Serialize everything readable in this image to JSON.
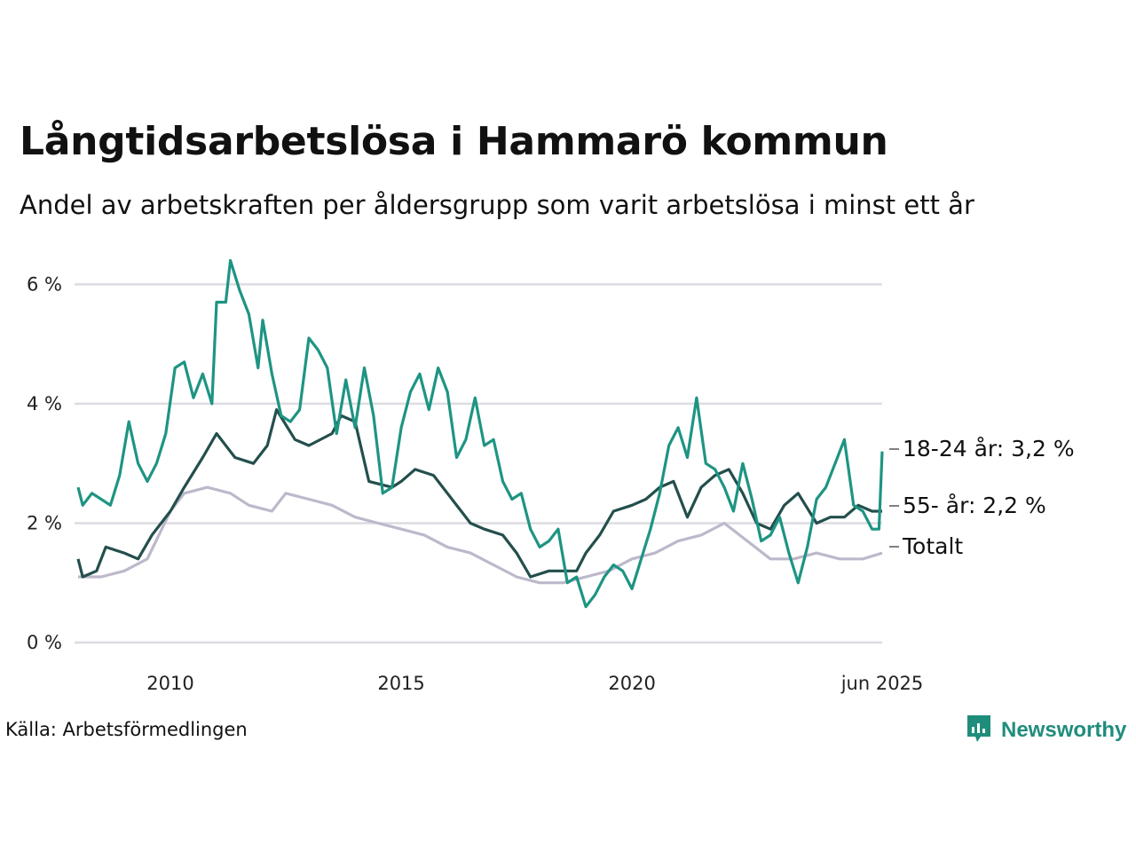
{
  "title": "Långtidsarbetslösa i Hammarö kommun",
  "subtitle": "Andel av arbetskraften per åldersgrupp som varit arbetslösa i minst ett år",
  "source": "Källa: Arbetsförmedlingen",
  "brand": {
    "name": "Newsworthy",
    "icon": "newsworthy-logo-icon",
    "color": "#1f8d7c"
  },
  "chart_data": {
    "type": "line",
    "x_start": "2008-01",
    "x_end": "2025-06",
    "xlim": [
      2008.0,
      2025.42
    ],
    "ylim": [
      0,
      6.6
    ],
    "x_ticks": [
      {
        "x": 2010,
        "label": "2010"
      },
      {
        "x": 2015,
        "label": "2015"
      },
      {
        "x": 2020,
        "label": "2020"
      },
      {
        "x": 2025.42,
        "label": "jun 2025"
      }
    ],
    "y_ticks": [
      {
        "y": 0,
        "label": "0 %"
      },
      {
        "y": 2,
        "label": "2 %"
      },
      {
        "y": 4,
        "label": "4 %"
      },
      {
        "y": 6,
        "label": "6 %"
      }
    ],
    "grid": "horizontal",
    "series": [
      {
        "name": "Totalt",
        "label": "Totalt",
        "color": "#bdb8cb",
        "points": [
          [
            2008.0,
            1.1
          ],
          [
            2008.5,
            1.1
          ],
          [
            2009.0,
            1.2
          ],
          [
            2009.5,
            1.4
          ],
          [
            2010.0,
            2.2
          ],
          [
            2010.3,
            2.5
          ],
          [
            2010.8,
            2.6
          ],
          [
            2011.3,
            2.5
          ],
          [
            2011.7,
            2.3
          ],
          [
            2012.2,
            2.2
          ],
          [
            2012.5,
            2.5
          ],
          [
            2013.0,
            2.4
          ],
          [
            2013.5,
            2.3
          ],
          [
            2014.0,
            2.1
          ],
          [
            2014.5,
            2.0
          ],
          [
            2015.0,
            1.9
          ],
          [
            2015.5,
            1.8
          ],
          [
            2016.0,
            1.6
          ],
          [
            2016.5,
            1.5
          ],
          [
            2017.0,
            1.3
          ],
          [
            2017.5,
            1.1
          ],
          [
            2018.0,
            1.0
          ],
          [
            2018.5,
            1.0
          ],
          [
            2019.0,
            1.1
          ],
          [
            2019.5,
            1.2
          ],
          [
            2020.0,
            1.4
          ],
          [
            2020.5,
            1.5
          ],
          [
            2021.0,
            1.7
          ],
          [
            2021.5,
            1.8
          ],
          [
            2022.0,
            2.0
          ],
          [
            2022.5,
            1.7
          ],
          [
            2023.0,
            1.4
          ],
          [
            2023.5,
            1.4
          ],
          [
            2024.0,
            1.5
          ],
          [
            2024.5,
            1.4
          ],
          [
            2025.0,
            1.4
          ],
          [
            2025.42,
            1.5
          ]
        ]
      },
      {
        "name": "55- år",
        "label": "55- år: 2,2 %",
        "color": "#234f4c",
        "points": [
          [
            2008.0,
            1.4
          ],
          [
            2008.1,
            1.1
          ],
          [
            2008.4,
            1.2
          ],
          [
            2008.6,
            1.6
          ],
          [
            2009.0,
            1.5
          ],
          [
            2009.3,
            1.4
          ],
          [
            2009.6,
            1.8
          ],
          [
            2010.0,
            2.2
          ],
          [
            2010.3,
            2.6
          ],
          [
            2010.7,
            3.1
          ],
          [
            2011.0,
            3.5
          ],
          [
            2011.4,
            3.1
          ],
          [
            2011.8,
            3.0
          ],
          [
            2012.1,
            3.3
          ],
          [
            2012.3,
            3.9
          ],
          [
            2012.7,
            3.4
          ],
          [
            2013.0,
            3.3
          ],
          [
            2013.5,
            3.5
          ],
          [
            2013.7,
            3.8
          ],
          [
            2014.0,
            3.7
          ],
          [
            2014.3,
            2.7
          ],
          [
            2014.8,
            2.6
          ],
          [
            2015.0,
            2.7
          ],
          [
            2015.3,
            2.9
          ],
          [
            2015.7,
            2.8
          ],
          [
            2016.0,
            2.5
          ],
          [
            2016.3,
            2.2
          ],
          [
            2016.5,
            2.0
          ],
          [
            2016.8,
            1.9
          ],
          [
            2017.2,
            1.8
          ],
          [
            2017.5,
            1.5
          ],
          [
            2017.8,
            1.1
          ],
          [
            2018.2,
            1.2
          ],
          [
            2018.5,
            1.2
          ],
          [
            2018.8,
            1.2
          ],
          [
            2019.0,
            1.5
          ],
          [
            2019.3,
            1.8
          ],
          [
            2019.6,
            2.2
          ],
          [
            2020.0,
            2.3
          ],
          [
            2020.3,
            2.4
          ],
          [
            2020.6,
            2.6
          ],
          [
            2020.9,
            2.7
          ],
          [
            2021.2,
            2.1
          ],
          [
            2021.5,
            2.6
          ],
          [
            2021.8,
            2.8
          ],
          [
            2022.1,
            2.9
          ],
          [
            2022.4,
            2.5
          ],
          [
            2022.7,
            2.0
          ],
          [
            2023.0,
            1.9
          ],
          [
            2023.3,
            2.3
          ],
          [
            2023.6,
            2.5
          ],
          [
            2024.0,
            2.0
          ],
          [
            2024.3,
            2.1
          ],
          [
            2024.6,
            2.1
          ],
          [
            2024.9,
            2.3
          ],
          [
            2025.2,
            2.2
          ],
          [
            2025.42,
            2.2
          ]
        ]
      },
      {
        "name": "18-24 år",
        "label": "18-24 år: 3,2 %",
        "color": "#1e9483",
        "points": [
          [
            2008.0,
            2.6
          ],
          [
            2008.1,
            2.3
          ],
          [
            2008.3,
            2.5
          ],
          [
            2008.5,
            2.4
          ],
          [
            2008.7,
            2.3
          ],
          [
            2008.9,
            2.8
          ],
          [
            2009.1,
            3.7
          ],
          [
            2009.3,
            3.0
          ],
          [
            2009.5,
            2.7
          ],
          [
            2009.7,
            3.0
          ],
          [
            2009.9,
            3.5
          ],
          [
            2010.1,
            4.6
          ],
          [
            2010.3,
            4.7
          ],
          [
            2010.5,
            4.1
          ],
          [
            2010.7,
            4.5
          ],
          [
            2010.9,
            4.0
          ],
          [
            2011.0,
            5.7
          ],
          [
            2011.2,
            5.7
          ],
          [
            2011.3,
            6.4
          ],
          [
            2011.5,
            5.9
          ],
          [
            2011.7,
            5.5
          ],
          [
            2011.9,
            4.6
          ],
          [
            2012.0,
            5.4
          ],
          [
            2012.2,
            4.5
          ],
          [
            2012.4,
            3.8
          ],
          [
            2012.6,
            3.7
          ],
          [
            2012.8,
            3.9
          ],
          [
            2013.0,
            5.1
          ],
          [
            2013.2,
            4.9
          ],
          [
            2013.4,
            4.6
          ],
          [
            2013.6,
            3.5
          ],
          [
            2013.8,
            4.4
          ],
          [
            2014.0,
            3.6
          ],
          [
            2014.2,
            4.6
          ],
          [
            2014.4,
            3.8
          ],
          [
            2014.6,
            2.5
          ],
          [
            2014.8,
            2.6
          ],
          [
            2015.0,
            3.6
          ],
          [
            2015.2,
            4.2
          ],
          [
            2015.4,
            4.5
          ],
          [
            2015.6,
            3.9
          ],
          [
            2015.8,
            4.6
          ],
          [
            2016.0,
            4.2
          ],
          [
            2016.2,
            3.1
          ],
          [
            2016.4,
            3.4
          ],
          [
            2016.6,
            4.1
          ],
          [
            2016.8,
            3.3
          ],
          [
            2017.0,
            3.4
          ],
          [
            2017.2,
            2.7
          ],
          [
            2017.4,
            2.4
          ],
          [
            2017.6,
            2.5
          ],
          [
            2017.8,
            1.9
          ],
          [
            2018.0,
            1.6
          ],
          [
            2018.2,
            1.7
          ],
          [
            2018.4,
            1.9
          ],
          [
            2018.6,
            1.0
          ],
          [
            2018.8,
            1.1
          ],
          [
            2019.0,
            0.6
          ],
          [
            2019.2,
            0.8
          ],
          [
            2019.4,
            1.1
          ],
          [
            2019.6,
            1.3
          ],
          [
            2019.8,
            1.2
          ],
          [
            2020.0,
            0.9
          ],
          [
            2020.2,
            1.4
          ],
          [
            2020.4,
            1.9
          ],
          [
            2020.6,
            2.5
          ],
          [
            2020.8,
            3.3
          ],
          [
            2021.0,
            3.6
          ],
          [
            2021.2,
            3.1
          ],
          [
            2021.4,
            4.1
          ],
          [
            2021.6,
            3.0
          ],
          [
            2021.8,
            2.9
          ],
          [
            2022.0,
            2.6
          ],
          [
            2022.2,
            2.2
          ],
          [
            2022.4,
            3.0
          ],
          [
            2022.6,
            2.4
          ],
          [
            2022.8,
            1.7
          ],
          [
            2023.0,
            1.8
          ],
          [
            2023.2,
            2.1
          ],
          [
            2023.4,
            1.5
          ],
          [
            2023.6,
            1.0
          ],
          [
            2023.8,
            1.6
          ],
          [
            2024.0,
            2.4
          ],
          [
            2024.2,
            2.6
          ],
          [
            2024.4,
            3.0
          ],
          [
            2024.6,
            3.4
          ],
          [
            2024.8,
            2.3
          ],
          [
            2025.0,
            2.2
          ],
          [
            2025.2,
            1.9
          ],
          [
            2025.35,
            1.9
          ],
          [
            2025.42,
            3.2
          ]
        ]
      }
    ]
  }
}
